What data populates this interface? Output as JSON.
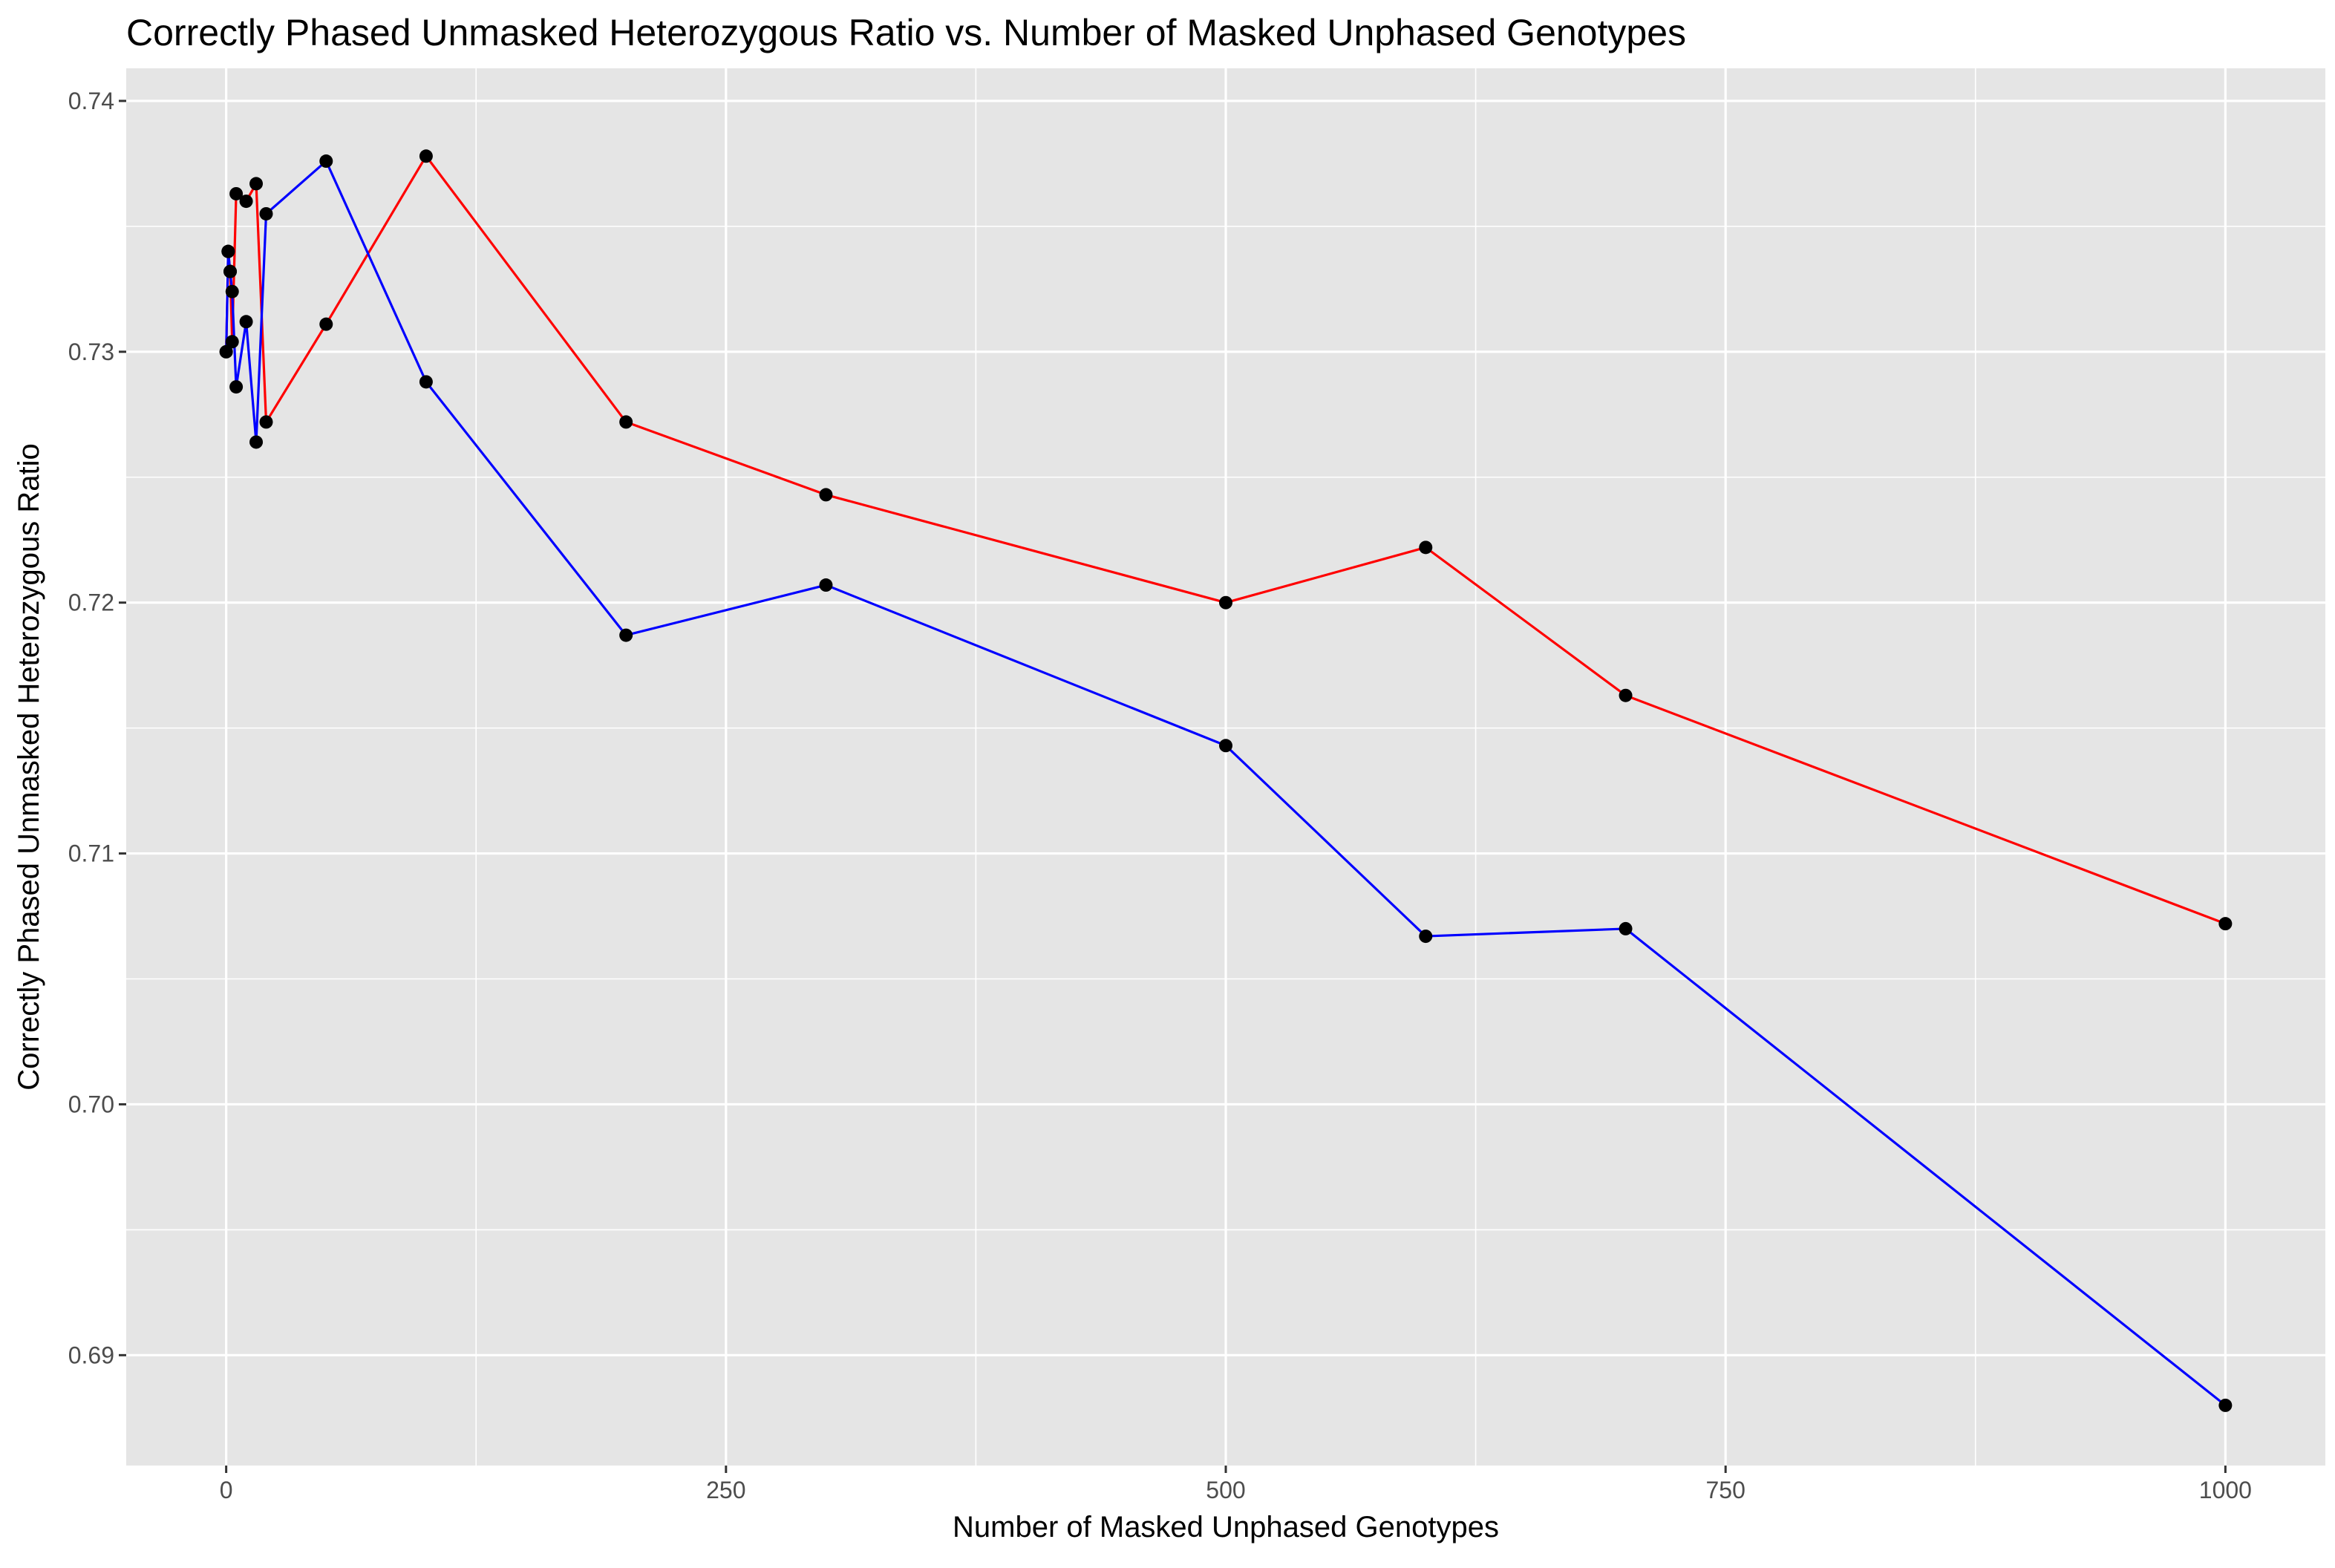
{
  "chart_data": {
    "type": "line",
    "title": "Correctly Phased Unmasked Heterozygous Ratio vs. Number of Masked Unphased Genotypes",
    "xlabel": "Number of Masked Unphased Genotypes",
    "ylabel": "Correctly Phased Unmasked Heterozygous Ratio",
    "xlim": [
      -50,
      1050
    ],
    "ylim": [
      0.6856,
      0.7413
    ],
    "x_ticks": [
      0,
      250,
      500,
      750,
      1000
    ],
    "x_tick_labels": [
      "0",
      "250",
      "500",
      "750",
      "1000"
    ],
    "y_ticks": [
      0.69,
      0.7,
      0.71,
      0.72,
      0.73,
      0.74
    ],
    "y_tick_labels": [
      "0.69",
      "0.70",
      "0.71",
      "0.72",
      "0.73",
      "0.74"
    ],
    "grid": true,
    "background_color": "#e5e5e5",
    "point_color": "#000000",
    "series": [
      {
        "color": "#ff0000",
        "x": [
          0,
          1,
          2,
          3,
          5,
          10,
          15,
          20,
          50,
          100,
          200,
          300,
          500,
          600,
          700,
          1000
        ],
        "y": [
          0.73,
          0.734,
          0.7332,
          0.7304,
          0.7363,
          0.736,
          0.7367,
          0.7272,
          0.7311,
          0.7378,
          0.7272,
          0.7243,
          0.72,
          0.7222,
          0.7163,
          0.7072
        ]
      },
      {
        "color": "#0000ff",
        "x": [
          0,
          1,
          2,
          3,
          5,
          10,
          15,
          20,
          50,
          100,
          200,
          300,
          500,
          600,
          700,
          1000
        ],
        "y": [
          0.73,
          0.734,
          0.7332,
          0.7324,
          0.7286,
          0.7312,
          0.7264,
          0.7355,
          0.7376,
          0.7288,
          0.7187,
          0.7207,
          0.7143,
          0.7067,
          0.707,
          0.688
        ]
      }
    ]
  }
}
